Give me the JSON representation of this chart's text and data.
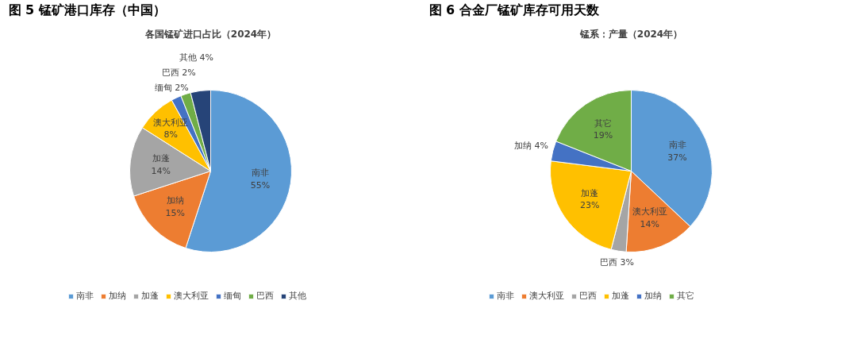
{
  "chart_data": [
    {
      "type": "pie",
      "title": "图 5 锰矿港口库存（中国）",
      "subtitle": "各国锰矿进口占比（2024年）",
      "categories": [
        "南非",
        "加纳",
        "加蓬",
        "澳大利亚",
        "缅甸",
        "巴西",
        "其他"
      ],
      "values": [
        55,
        15,
        14,
        8,
        2,
        2,
        4
      ],
      "value_labels": [
        "55%",
        "15%",
        "14%",
        "8%",
        "2%",
        "2%",
        "4%"
      ],
      "colors": [
        "#5b9bd5",
        "#ed7d31",
        "#a5a5a5",
        "#ffc000",
        "#4472c4",
        "#70ad47",
        "#264478"
      ],
      "legend": "bottom"
    },
    {
      "type": "pie",
      "title": "图 6 合金厂锰矿库存可用天数",
      "subtitle": "锰系：产量（2024年）",
      "categories": [
        "南非",
        "澳大利亚",
        "巴西",
        "加蓬",
        "加纳",
        "其它"
      ],
      "values": [
        37,
        14,
        3,
        23,
        4,
        19
      ],
      "value_labels": [
        "37%",
        "14%",
        "3%",
        "23%",
        "4%",
        "19%"
      ],
      "colors": [
        "#5b9bd5",
        "#ed7d31",
        "#a5a5a5",
        "#ffc000",
        "#4472c4",
        "#70ad47"
      ],
      "legend": "bottom"
    }
  ]
}
